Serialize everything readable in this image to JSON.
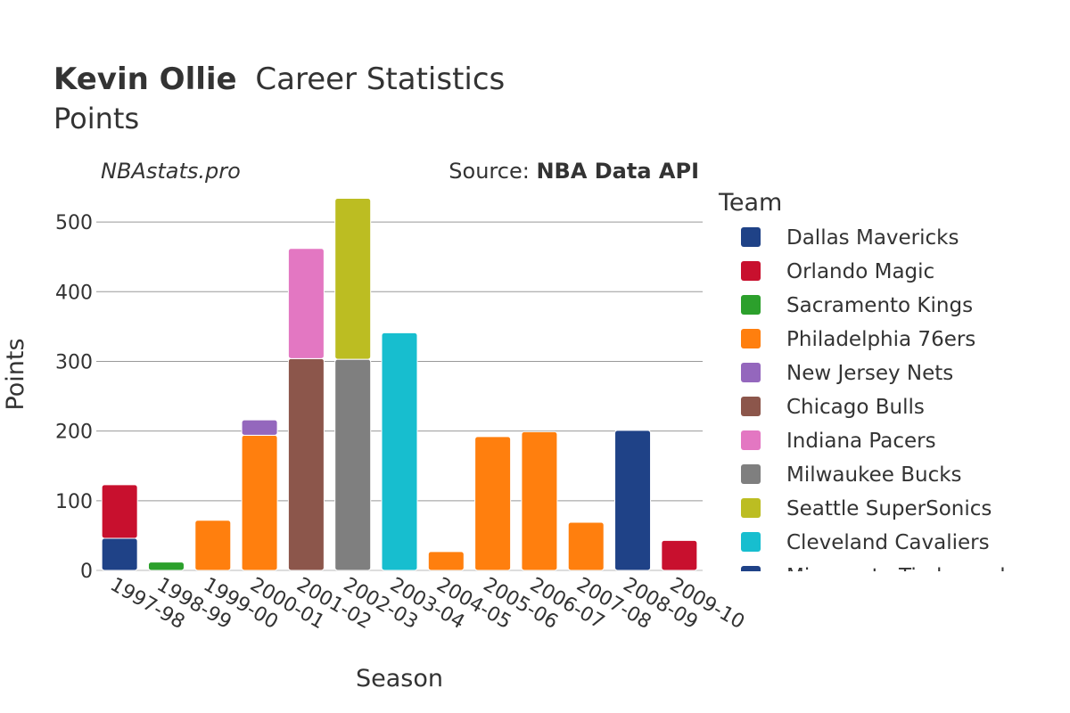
{
  "title": {
    "player": "Kevin Ollie",
    "rest": "Career Statistics",
    "subtitle": "Points"
  },
  "watermark": "NBAstats.pro",
  "source": {
    "prefix": "Source: ",
    "name": "NBA Data API"
  },
  "legend": {
    "title": "Team",
    "items": [
      {
        "name": "Dallas Mavericks",
        "color": "#1f4287"
      },
      {
        "name": "Orlando Magic",
        "color": "#c8102e"
      },
      {
        "name": "Sacramento Kings",
        "color": "#2ca02c"
      },
      {
        "name": "Philadelphia 76ers",
        "color": "#ff7f0e"
      },
      {
        "name": "New Jersey Nets",
        "color": "#9467bd"
      },
      {
        "name": "Chicago Bulls",
        "color": "#8c564b"
      },
      {
        "name": "Indiana Pacers",
        "color": "#e377c2"
      },
      {
        "name": "Milwaukee Bucks",
        "color": "#7f7f7f"
      },
      {
        "name": "Seattle SuperSonics",
        "color": "#bcbd22"
      },
      {
        "name": "Cleveland Cavaliers",
        "color": "#17becf"
      },
      {
        "name": "Minnesota Timberwolves",
        "color": "#1f4287"
      }
    ]
  },
  "chart_data": {
    "type": "bar",
    "stacked": true,
    "xlabel": "Season",
    "ylabel": "Points",
    "ylim": [
      0,
      550
    ],
    "yticks": [
      0,
      100,
      200,
      300,
      400,
      500
    ],
    "grid": true,
    "legend_position": "right",
    "categories": [
      "1997-98",
      "1998-99",
      "1999-00",
      "2000-01",
      "2001-02",
      "2002-03",
      "2003-04",
      "2004-05",
      "2005-06",
      "2006-07",
      "2007-08",
      "2008-09",
      "2009-10"
    ],
    "series": [
      {
        "name": "Dallas Mavericks",
        "color": "#1f4287",
        "values": [
          46,
          0,
          0,
          0,
          0,
          0,
          0,
          0,
          0,
          0,
          0,
          0,
          0
        ]
      },
      {
        "name": "Orlando Magic",
        "color": "#c8102e",
        "values": [
          77,
          0,
          0,
          0,
          0,
          0,
          0,
          0,
          0,
          0,
          0,
          0,
          43
        ]
      },
      {
        "name": "Sacramento Kings",
        "color": "#2ca02c",
        "values": [
          0,
          12,
          0,
          0,
          0,
          0,
          0,
          0,
          0,
          0,
          0,
          0,
          0
        ]
      },
      {
        "name": "Philadelphia 76ers",
        "color": "#ff7f0e",
        "values": [
          0,
          0,
          72,
          194,
          0,
          0,
          0,
          27,
          192,
          199,
          69,
          0,
          0
        ]
      },
      {
        "name": "New Jersey Nets",
        "color": "#9467bd",
        "values": [
          0,
          0,
          0,
          22,
          0,
          0,
          0,
          0,
          0,
          0,
          0,
          0,
          0
        ]
      },
      {
        "name": "Chicago Bulls",
        "color": "#8c564b",
        "values": [
          0,
          0,
          0,
          0,
          304,
          0,
          0,
          0,
          0,
          0,
          0,
          0,
          0
        ]
      },
      {
        "name": "Indiana Pacers",
        "color": "#e377c2",
        "values": [
          0,
          0,
          0,
          0,
          158,
          0,
          0,
          0,
          0,
          0,
          0,
          0,
          0
        ]
      },
      {
        "name": "Milwaukee Bucks",
        "color": "#7f7f7f",
        "values": [
          0,
          0,
          0,
          0,
          0,
          303,
          0,
          0,
          0,
          0,
          0,
          0,
          0
        ]
      },
      {
        "name": "Seattle SuperSonics",
        "color": "#bcbd22",
        "values": [
          0,
          0,
          0,
          0,
          0,
          231,
          0,
          0,
          0,
          0,
          0,
          0,
          0
        ]
      },
      {
        "name": "Cleveland Cavaliers",
        "color": "#17becf",
        "values": [
          0,
          0,
          0,
          0,
          0,
          0,
          341,
          0,
          0,
          0,
          0,
          0,
          0
        ]
      },
      {
        "name": "Minnesota Timberwolves",
        "color": "#1f4287",
        "values": [
          0,
          0,
          0,
          0,
          0,
          0,
          0,
          0,
          0,
          0,
          0,
          201,
          0
        ]
      }
    ]
  }
}
